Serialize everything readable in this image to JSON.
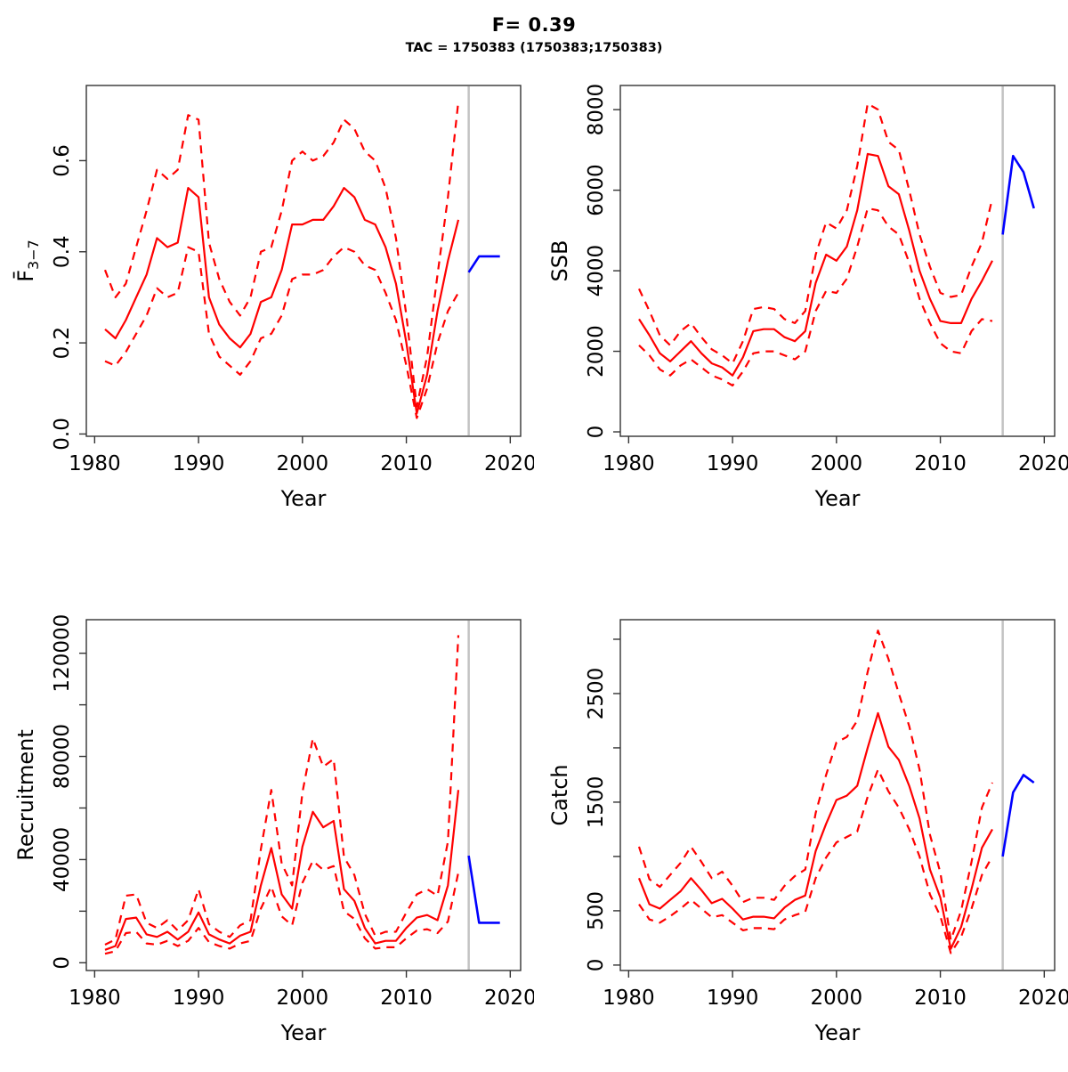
{
  "header": {
    "title": "F= 0.39",
    "subtitle": "TAC = 1750383 (1750383;1750383)"
  },
  "colors": {
    "estimate": "#ff0000",
    "forecast": "#0000ff",
    "divider": "#c3c3c3",
    "frame": "#333333",
    "text": "#000000"
  },
  "chart_data": [
    {
      "id": "fbar",
      "type": "line",
      "xlabel": "Year",
      "ylabel": "F̄",
      "ylabel_sub": "3−7",
      "xlim": [
        1979.2,
        2021.0
      ],
      "ylim": [
        -0.005,
        0.765
      ],
      "xticks": [
        1980,
        1990,
        2000,
        2010,
        2020
      ],
      "yticks": [
        {
          "v": 0.0,
          "label": "0.0"
        },
        {
          "v": 0.2,
          "label": "0.2"
        },
        {
          "v": 0.4,
          "label": "0.4"
        },
        {
          "v": 0.6,
          "label": "0.6"
        }
      ],
      "divider_year": 2016,
      "years": [
        1981,
        1982,
        1983,
        1984,
        1985,
        1986,
        1987,
        1988,
        1989,
        1990,
        1991,
        1992,
        1993,
        1994,
        1995,
        1996,
        1997,
        1998,
        1999,
        2000,
        2001,
        2002,
        2003,
        2004,
        2005,
        2006,
        2007,
        2008,
        2009,
        2010,
        2011,
        2012,
        2013,
        2014,
        2015
      ],
      "series": [
        {
          "name": "upper-ci",
          "style": "dashed",
          "color": "estimate",
          "values": [
            0.36,
            0.3,
            0.33,
            0.41,
            0.49,
            0.58,
            0.56,
            0.58,
            0.7,
            0.69,
            0.42,
            0.34,
            0.29,
            0.26,
            0.3,
            0.4,
            0.41,
            0.49,
            0.6,
            0.62,
            0.6,
            0.61,
            0.64,
            0.69,
            0.67,
            0.62,
            0.6,
            0.54,
            0.43,
            0.26,
            0.06,
            0.17,
            0.35,
            0.52,
            0.73
          ]
        },
        {
          "name": "lower-ci",
          "style": "dashed",
          "color": "estimate",
          "values": [
            0.16,
            0.15,
            0.18,
            0.22,
            0.26,
            0.32,
            0.3,
            0.31,
            0.41,
            0.4,
            0.22,
            0.17,
            0.15,
            0.13,
            0.16,
            0.21,
            0.22,
            0.26,
            0.34,
            0.35,
            0.35,
            0.36,
            0.39,
            0.41,
            0.4,
            0.37,
            0.36,
            0.31,
            0.25,
            0.15,
            0.035,
            0.1,
            0.2,
            0.27,
            0.31
          ]
        },
        {
          "name": "median",
          "style": "solid",
          "color": "estimate",
          "values": [
            0.23,
            0.21,
            0.25,
            0.3,
            0.35,
            0.43,
            0.41,
            0.42,
            0.54,
            0.52,
            0.3,
            0.24,
            0.21,
            0.19,
            0.22,
            0.29,
            0.3,
            0.36,
            0.46,
            0.46,
            0.47,
            0.47,
            0.5,
            0.54,
            0.52,
            0.47,
            0.46,
            0.41,
            0.33,
            0.2,
            0.045,
            0.13,
            0.27,
            0.38,
            0.47
          ]
        },
        {
          "name": "forecast",
          "style": "solid",
          "color": "forecast",
          "years": [
            2016,
            2017,
            2018,
            2019
          ],
          "values": [
            0.355,
            0.39,
            0.39,
            0.39
          ]
        }
      ]
    },
    {
      "id": "ssb",
      "type": "line",
      "xlabel": "Year",
      "ylabel": "SSB",
      "ylabel_sub": "",
      "xlim": [
        1979.2,
        2021.0
      ],
      "ylim": [
        -110,
        8600
      ],
      "xticks": [
        1980,
        1990,
        2000,
        2010,
        2020
      ],
      "yticks": [
        {
          "v": 0,
          "label": "0"
        },
        {
          "v": 2000,
          "label": "2000"
        },
        {
          "v": 4000,
          "label": "4000"
        },
        {
          "v": 6000,
          "label": "6000"
        },
        {
          "v": 8000,
          "label": "8000"
        }
      ],
      "divider_year": 2016,
      "years": [
        1981,
        1982,
        1983,
        1984,
        1985,
        1986,
        1987,
        1988,
        1989,
        1990,
        1991,
        1992,
        1993,
        1994,
        1995,
        1996,
        1997,
        1998,
        1999,
        2000,
        2001,
        2002,
        2003,
        2004,
        2005,
        2006,
        2007,
        2008,
        2009,
        2010,
        2011,
        2012,
        2013,
        2014,
        2015
      ],
      "series": [
        {
          "name": "upper-ci",
          "style": "dashed",
          "color": "estimate",
          "values": [
            3550,
            3000,
            2400,
            2150,
            2500,
            2700,
            2350,
            2050,
            1900,
            1700,
            2250,
            3050,
            3100,
            3050,
            2800,
            2700,
            3000,
            4400,
            5200,
            5050,
            5500,
            6600,
            8150,
            8000,
            7200,
            7000,
            6000,
            4900,
            4100,
            3450,
            3350,
            3400,
            4100,
            4700,
            5800
          ]
        },
        {
          "name": "lower-ci",
          "style": "dashed",
          "color": "estimate",
          "values": [
            2150,
            1900,
            1550,
            1400,
            1650,
            1800,
            1600,
            1400,
            1300,
            1150,
            1500,
            1950,
            2000,
            2000,
            1900,
            1800,
            2000,
            3000,
            3500,
            3450,
            3800,
            4600,
            5550,
            5500,
            5100,
            4900,
            4200,
            3300,
            2700,
            2200,
            2000,
            1950,
            2500,
            2800,
            2750
          ]
        },
        {
          "name": "median",
          "style": "solid",
          "color": "estimate",
          "values": [
            2800,
            2400,
            1950,
            1750,
            2000,
            2250,
            1950,
            1700,
            1600,
            1400,
            1850,
            2500,
            2550,
            2550,
            2350,
            2250,
            2500,
            3700,
            4400,
            4250,
            4600,
            5500,
            6900,
            6850,
            6100,
            5900,
            5000,
            4000,
            3300,
            2750,
            2700,
            2700,
            3300,
            3750,
            4250
          ]
        },
        {
          "name": "forecast",
          "style": "solid",
          "color": "forecast",
          "years": [
            2016,
            2017,
            2018,
            2019
          ],
          "values": [
            4900,
            6850,
            6450,
            5550
          ]
        }
      ]
    },
    {
      "id": "recruitment",
      "type": "line",
      "xlabel": "Year",
      "ylabel": "Recruitment",
      "ylabel_sub": "",
      "xlim": [
        1979.2,
        2021.0
      ],
      "ylim": [
        -3000,
        133000
      ],
      "xticks": [
        1980,
        1990,
        2000,
        2010,
        2020
      ],
      "yticks": [
        {
          "v": 0,
          "label": "0"
        },
        {
          "v": 20000,
          "label": ""
        },
        {
          "v": 40000,
          "label": "40000"
        },
        {
          "v": 60000,
          "label": ""
        },
        {
          "v": 80000,
          "label": "80000"
        },
        {
          "v": 100000,
          "label": ""
        },
        {
          "v": 120000,
          "label": "120000"
        }
      ],
      "divider_year": 2016,
      "years": [
        1981,
        1982,
        1983,
        1984,
        1985,
        1986,
        1987,
        1988,
        1989,
        1990,
        1991,
        1992,
        1993,
        1994,
        1995,
        1996,
        1997,
        1998,
        1999,
        2000,
        2001,
        2002,
        2003,
        2004,
        2005,
        2006,
        2007,
        2008,
        2009,
        2010,
        2011,
        2012,
        2013,
        2014,
        2015
      ],
      "series": [
        {
          "name": "upper-ci",
          "style": "dashed",
          "color": "estimate",
          "values": [
            7000,
            9000,
            26000,
            26500,
            15500,
            13500,
            16500,
            12500,
            16500,
            28500,
            15000,
            12000,
            10000,
            14500,
            16500,
            44000,
            67000,
            38500,
            30000,
            66000,
            87000,
            76000,
            79000,
            41000,
            34000,
            19000,
            10500,
            12000,
            12000,
            19500,
            26500,
            28500,
            26000,
            47000,
            127000
          ]
        },
        {
          "name": "lower-ci",
          "style": "dashed",
          "color": "estimate",
          "values": [
            3500,
            4500,
            11500,
            12000,
            7500,
            7000,
            8500,
            6500,
            8500,
            13500,
            8000,
            6500,
            5500,
            7500,
            8500,
            21000,
            29500,
            18000,
            14500,
            31000,
            39500,
            36000,
            37500,
            20000,
            17000,
            9500,
            5500,
            6000,
            6000,
            9500,
            12500,
            13000,
            11500,
            16000,
            35000
          ]
        },
        {
          "name": "median",
          "style": "solid",
          "color": "estimate",
          "values": [
            5000,
            6500,
            17000,
            17500,
            11000,
            10000,
            12000,
            9000,
            12000,
            19500,
            11000,
            9000,
            7500,
            10500,
            12000,
            30000,
            44500,
            26500,
            21000,
            45000,
            58500,
            52500,
            55000,
            28500,
            24000,
            13500,
            7500,
            8500,
            8500,
            13500,
            17500,
            18500,
            16500,
            30000,
            67000
          ]
        },
        {
          "name": "forecast",
          "style": "solid",
          "color": "forecast",
          "years": [
            2016,
            2017,
            2018,
            2019
          ],
          "values": [
            41500,
            15500,
            15500,
            15500
          ]
        }
      ]
    },
    {
      "id": "catch",
      "type": "line",
      "xlabel": "Year",
      "ylabel": "Catch",
      "ylabel_sub": "",
      "xlim": [
        1979.2,
        2021.0
      ],
      "ylim": [
        -50,
        3180
      ],
      "xticks": [
        1980,
        1990,
        2000,
        2010,
        2020
      ],
      "yticks": [
        {
          "v": 0,
          "label": "0"
        },
        {
          "v": 500,
          "label": "500"
        },
        {
          "v": 1000,
          "label": ""
        },
        {
          "v": 1500,
          "label": "1500"
        },
        {
          "v": 2000,
          "label": ""
        },
        {
          "v": 2500,
          "label": "2500"
        },
        {
          "v": 3000,
          "label": ""
        }
      ],
      "divider_year": 2016,
      "years": [
        1981,
        1982,
        1983,
        1984,
        1985,
        1986,
        1987,
        1988,
        1989,
        1990,
        1991,
        1992,
        1993,
        1994,
        1995,
        1996,
        1997,
        1998,
        1999,
        2000,
        2001,
        2002,
        2003,
        2004,
        2005,
        2006,
        2007,
        2008,
        2009,
        2010,
        2011,
        2012,
        2013,
        2014,
        2015
      ],
      "series": [
        {
          "name": "upper-ci",
          "style": "dashed",
          "color": "estimate",
          "values": [
            1090,
            790,
            720,
            830,
            940,
            1090,
            950,
            800,
            860,
            730,
            580,
            620,
            620,
            600,
            730,
            820,
            880,
            1400,
            1750,
            2050,
            2100,
            2250,
            2700,
            3080,
            2820,
            2500,
            2200,
            1800,
            1200,
            850,
            230,
            500,
            950,
            1450,
            1680
          ]
        },
        {
          "name": "lower-ci",
          "style": "dashed",
          "color": "estimate",
          "values": [
            560,
            420,
            390,
            450,
            520,
            600,
            520,
            440,
            460,
            390,
            320,
            340,
            340,
            330,
            420,
            460,
            490,
            800,
            990,
            1130,
            1180,
            1230,
            1550,
            1800,
            1600,
            1450,
            1250,
            1000,
            650,
            450,
            110,
            260,
            520,
            830,
            1000
          ]
        },
        {
          "name": "median",
          "style": "solid",
          "color": "estimate",
          "values": [
            800,
            560,
            520,
            600,
            680,
            800,
            690,
            570,
            610,
            520,
            420,
            445,
            445,
            430,
            530,
            600,
            640,
            1050,
            1300,
            1520,
            1560,
            1650,
            2000,
            2320,
            2010,
            1890,
            1650,
            1350,
            880,
            620,
            150,
            350,
            700,
            1080,
            1250
          ]
        },
        {
          "name": "forecast",
          "style": "solid",
          "color": "forecast",
          "years": [
            2016,
            2017,
            2018,
            2019
          ],
          "values": [
            1000,
            1590,
            1750,
            1680
          ]
        }
      ]
    }
  ]
}
